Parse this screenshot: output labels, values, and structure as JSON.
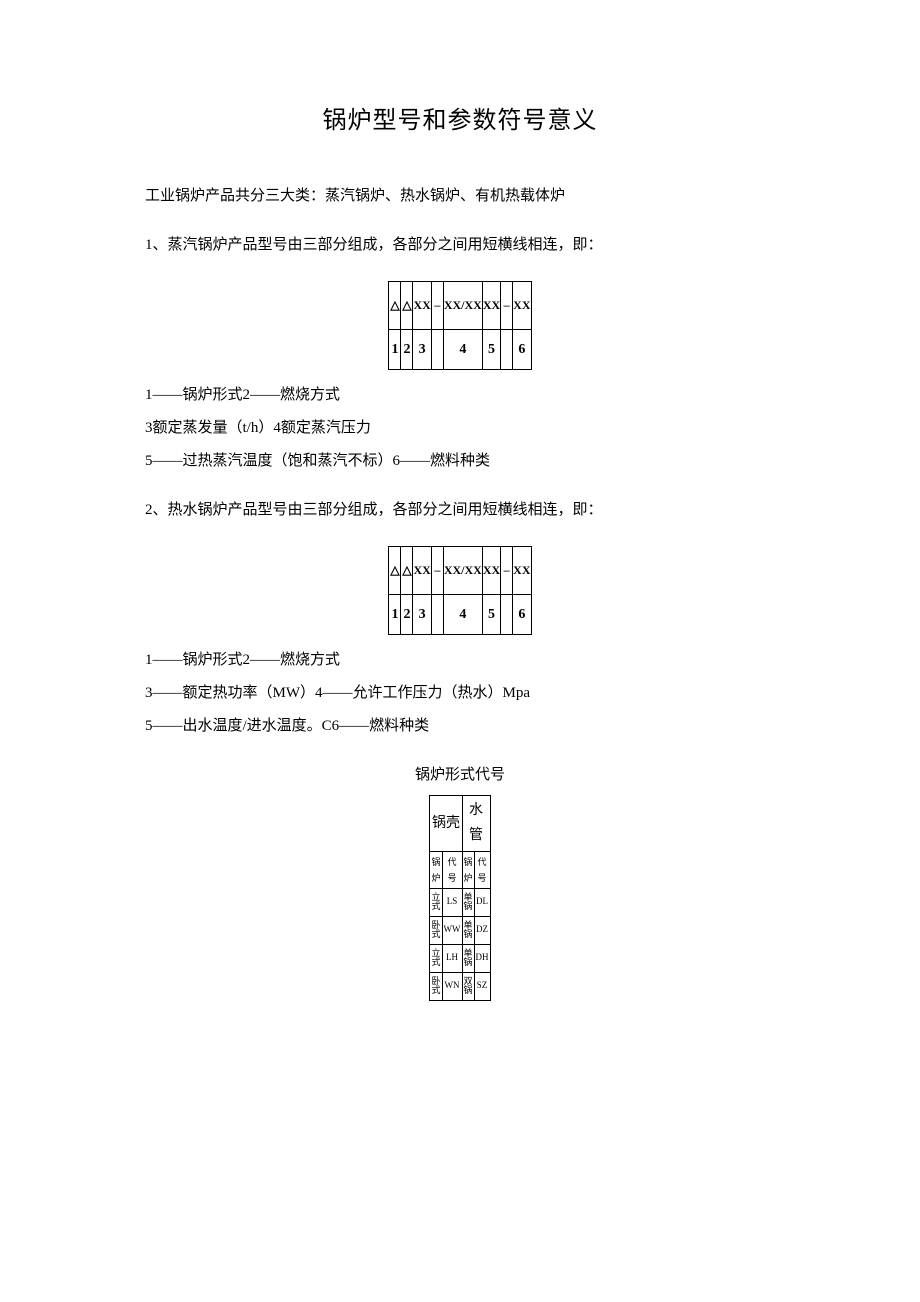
{
  "title": "锅炉型号和参数符号意义",
  "intro": "工业锅炉产品共分三大类：蒸汽锅炉、热水锅炉、有机热载体炉",
  "section1": {
    "lead": "1、蒸汽锅炉产品型号由三部分组成，各部分之间用短横线相连，即：",
    "diagram": {
      "top": [
        "△",
        "△",
        "XX",
        "–",
        "XX/XX",
        "XX",
        "–",
        "XX"
      ],
      "bot": [
        "1",
        "2",
        "3",
        "",
        "4",
        "5",
        "",
        "6"
      ]
    },
    "legend1": "1——锅炉形式2——燃烧方式",
    "legend2": "3额定蒸发量（t/h）4额定蒸汽压力",
    "legend3": "5——过热蒸汽温度（饱和蒸汽不标）6——燃料种类"
  },
  "section2": {
    "lead": "2、热水锅炉产品型号由三部分组成，各部分之间用短横线相连，即：",
    "diagram": {
      "top": [
        "△",
        "△",
        "XX",
        "–",
        "XX/XX",
        "XX",
        "–",
        "XX"
      ],
      "bot": [
        "1",
        "2",
        "3",
        "",
        "4",
        "5",
        "",
        "6"
      ]
    },
    "legend1": "1——锅炉形式2——燃烧方式",
    "legend2": "3——额定热功率（MW）4——允许工作压力（热水）Mpa",
    "legend3": "5——出水温度/进水温度。C6——燃料种类"
  },
  "codes_title": "锅炉形式代号",
  "codes": {
    "headers": [
      "锅壳",
      "水管"
    ],
    "subheaders": [
      "锅炉",
      "代号",
      "锅炉",
      "代号"
    ],
    "rows": [
      [
        "立式",
        "LS",
        "单锅",
        "DL"
      ],
      [
        "卧式",
        "WW",
        "单锅",
        "DZ"
      ],
      [
        "立式",
        "LH",
        "单锅",
        "DH"
      ],
      [
        "卧式",
        "WN",
        "双锅",
        "SZ"
      ]
    ]
  }
}
